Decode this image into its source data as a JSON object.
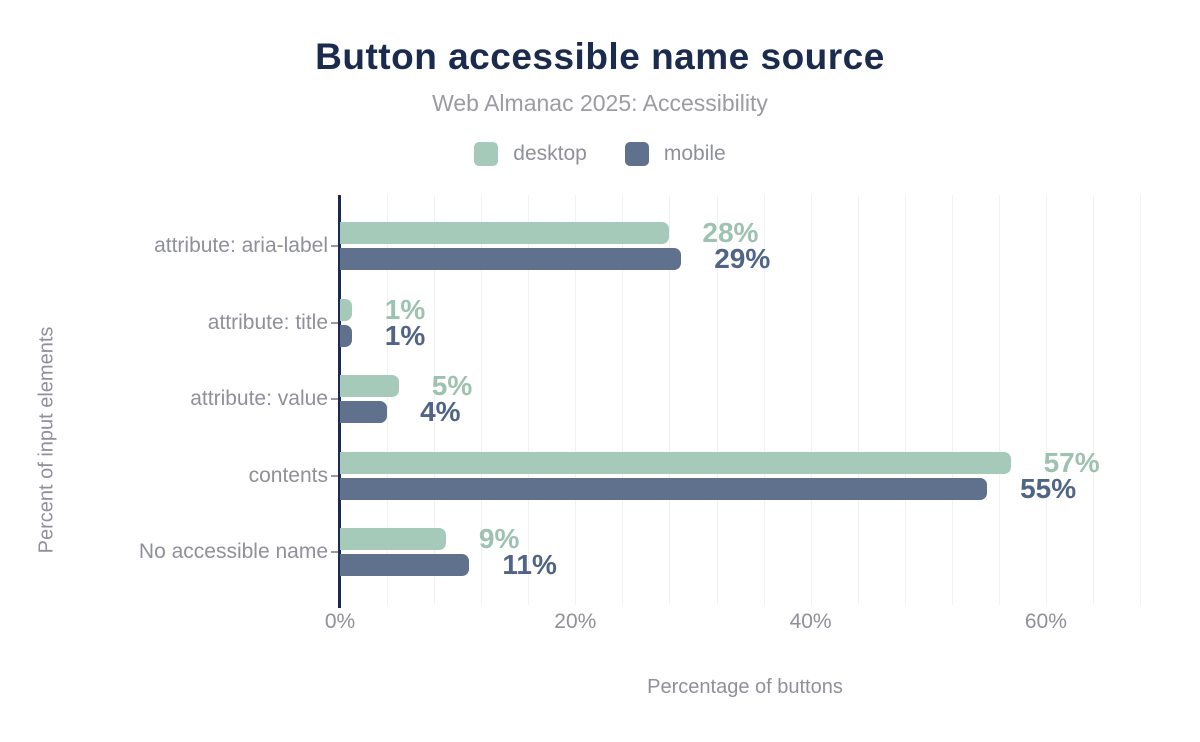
{
  "chart_data": {
    "type": "bar",
    "orientation": "horizontal",
    "title": "Button accessible name source",
    "subtitle": "Web Almanac 2025: Accessibility",
    "xlabel": "Percentage of buttons",
    "ylabel": "Percent of input elements",
    "categories": [
      "attribute: aria-label",
      "attribute: title",
      "attribute: value",
      "contents",
      "No accessible name"
    ],
    "series": [
      {
        "name": "desktop",
        "values": [
          28,
          1,
          5,
          57,
          9
        ],
        "color": "#a5cab9",
        "label_color": "#9dc2b1"
      },
      {
        "name": "mobile",
        "values": [
          29,
          1,
          4,
          55,
          11
        ],
        "color": "#5f718c",
        "label_color": "#506486"
      }
    ],
    "value_suffix": "%",
    "x_ticks": [
      {
        "label": "0%",
        "value": 0
      },
      {
        "label": "20%",
        "value": 20
      },
      {
        "label": "40%",
        "value": 40
      },
      {
        "label": "60%",
        "value": 60
      }
    ],
    "xlim": [
      0,
      68
    ],
    "gridline_step": 4,
    "grid": true,
    "legend_position": "top",
    "colors": {
      "title": "#1b2b4d",
      "subtitle": "#9b9ba1",
      "axis_line": "#1b2b4d",
      "muted_text": "#8f9098",
      "gridline": "#f2f2f3",
      "background": "#ffffff"
    }
  }
}
